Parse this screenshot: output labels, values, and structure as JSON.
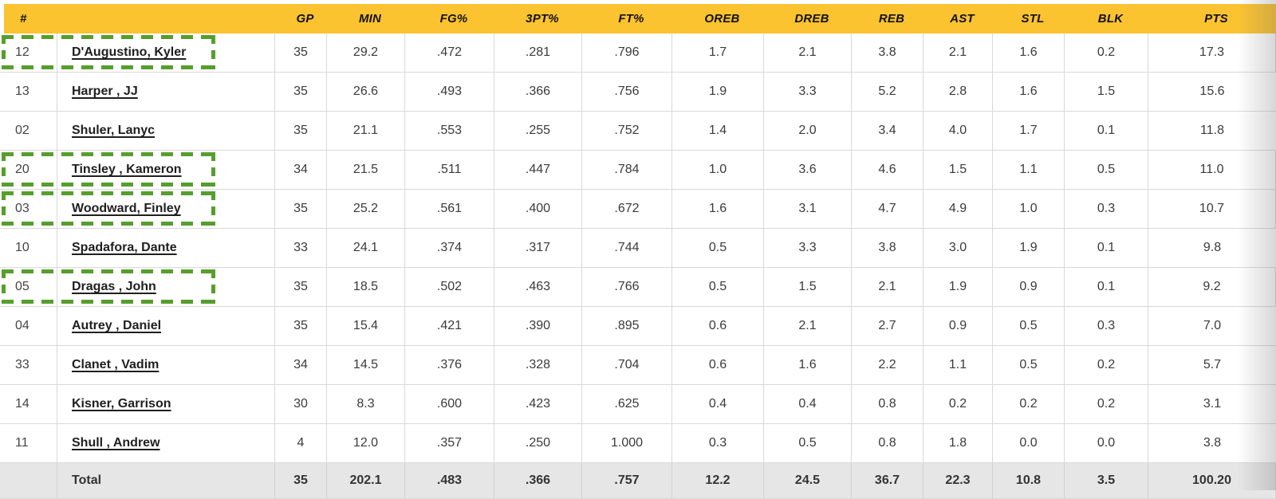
{
  "colors": {
    "header_bg": "#FCC330",
    "header_text": "#111111",
    "highlight_border": "#569E2D",
    "grid_line": "#d9d9d9",
    "total_row_bg": "#e6e6e6"
  },
  "table": {
    "columns": [
      "#",
      "",
      "GP",
      "MIN",
      "FG%",
      "3PT%",
      "FT%",
      "OREB",
      "DREB",
      "REB",
      "AST",
      "STL",
      "BLK",
      "PTS"
    ],
    "players": [
      {
        "number": "12",
        "name": "D'Augustino, Kyler",
        "highlighted": true,
        "stats": [
          "35",
          "29.2",
          ".472",
          ".281",
          ".796",
          "1.7",
          "2.1",
          "3.8",
          "2.1",
          "1.6",
          "0.2",
          "17.3"
        ]
      },
      {
        "number": "13",
        "name": "Harper , JJ",
        "highlighted": false,
        "stats": [
          "35",
          "26.6",
          ".493",
          ".366",
          ".756",
          "1.9",
          "3.3",
          "5.2",
          "2.8",
          "1.6",
          "1.5",
          "15.6"
        ]
      },
      {
        "number": "02",
        "name": "Shuler, Lanyc",
        "highlighted": false,
        "stats": [
          "35",
          "21.1",
          ".553",
          ".255",
          ".752",
          "1.4",
          "2.0",
          "3.4",
          "4.0",
          "1.7",
          "0.1",
          "11.8"
        ]
      },
      {
        "number": "20",
        "name": "Tinsley , Kameron",
        "highlighted": true,
        "stats": [
          "34",
          "21.5",
          ".511",
          ".447",
          ".784",
          "1.0",
          "3.6",
          "4.6",
          "1.5",
          "1.1",
          "0.5",
          "11.0"
        ]
      },
      {
        "number": "03",
        "name": "Woodward, Finley",
        "highlighted": true,
        "stats": [
          "35",
          "25.2",
          ".561",
          ".400",
          ".672",
          "1.6",
          "3.1",
          "4.7",
          "4.9",
          "1.0",
          "0.3",
          "10.7"
        ]
      },
      {
        "number": "10",
        "name": "Spadafora, Dante",
        "highlighted": false,
        "stats": [
          "33",
          "24.1",
          ".374",
          ".317",
          ".744",
          "0.5",
          "3.3",
          "3.8",
          "3.0",
          "1.9",
          "0.1",
          "9.8"
        ]
      },
      {
        "number": "05",
        "name": "Dragas , John",
        "highlighted": true,
        "stats": [
          "35",
          "18.5",
          ".502",
          ".463",
          ".766",
          "0.5",
          "1.5",
          "2.1",
          "1.9",
          "0.9",
          "0.1",
          "9.2"
        ]
      },
      {
        "number": "04",
        "name": "Autrey , Daniel",
        "highlighted": false,
        "stats": [
          "35",
          "15.4",
          ".421",
          ".390",
          ".895",
          "0.6",
          "2.1",
          "2.7",
          "0.9",
          "0.5",
          "0.3",
          "7.0"
        ]
      },
      {
        "number": "33",
        "name": "Clanet , Vadim",
        "highlighted": false,
        "stats": [
          "34",
          "14.5",
          ".376",
          ".328",
          ".704",
          "0.6",
          "1.6",
          "2.2",
          "1.1",
          "0.5",
          "0.2",
          "5.7"
        ]
      },
      {
        "number": "14",
        "name": "Kisner, Garrison",
        "highlighted": false,
        "stats": [
          "30",
          "8.3",
          ".600",
          ".423",
          ".625",
          "0.4",
          "0.4",
          "0.8",
          "0.2",
          "0.2",
          "0.2",
          "3.1"
        ]
      },
      {
        "number": "11",
        "name": "Shull , Andrew",
        "highlighted": false,
        "stats": [
          "4",
          "12.0",
          ".357",
          ".250",
          "1.000",
          "0.3",
          "0.5",
          "0.8",
          "1.8",
          "0.0",
          "0.0",
          "3.8"
        ]
      }
    ],
    "total": {
      "label": "Total",
      "stats": [
        "35",
        "202.1",
        ".483",
        ".366",
        ".757",
        "12.2",
        "24.5",
        "36.7",
        "22.3",
        "10.8",
        "3.5",
        "100.20"
      ]
    }
  }
}
